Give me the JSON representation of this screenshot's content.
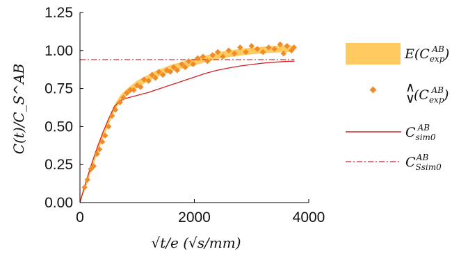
{
  "chart_data": {
    "type": "line",
    "xlabel": "√t/e (√s/mm)",
    "ylabel": "C(t)/C_S^AB",
    "xlim": [
      0,
      4000
    ],
    "ylim": [
      0,
      1.25
    ],
    "x_ticks": [
      "0",
      "2000",
      "4000"
    ],
    "y_ticks": [
      "0.00",
      "0.25",
      "0.50",
      "0.75",
      "1.00",
      "1.25"
    ],
    "grid": false,
    "legend_position": "right",
    "series": [
      {
        "name": "E(C_exp^AB)",
        "kind": "band",
        "color": "#FFCA5F",
        "x": [
          0,
          100,
          200,
          300,
          400,
          500,
          600,
          700,
          800,
          900,
          1000,
          1100,
          1200,
          1300,
          1400,
          1500,
          1600,
          1700,
          1800,
          1900,
          2000,
          2100,
          2200,
          2300,
          2400,
          2500,
          2600,
          2700,
          2800,
          2900,
          3000,
          3100,
          3200,
          3300,
          3400,
          3500,
          3600,
          3700
        ],
        "y": [
          0.0,
          0.12,
          0.23,
          0.34,
          0.44,
          0.53,
          0.62,
          0.68,
          0.72,
          0.75,
          0.78,
          0.8,
          0.82,
          0.84,
          0.855,
          0.87,
          0.885,
          0.895,
          0.905,
          0.915,
          0.925,
          0.935,
          0.945,
          0.955,
          0.965,
          0.972,
          0.978,
          0.983,
          0.988,
          0.993,
          0.997,
          1.0,
          1.003,
          1.006,
          1.008,
          1.01,
          1.012,
          1.013
        ],
        "half_width": 0.022
      },
      {
        "name": "(C_exp^AB) bounds",
        "kind": "scatter",
        "color": "#F08C28",
        "x": [
          80,
          130,
          190,
          240,
          300,
          340,
          390,
          440,
          500,
          560,
          620,
          700,
          760,
          820,
          880,
          940,
          1000,
          1060,
          1120,
          1200,
          1260,
          1320,
          1380,
          1450,
          1520,
          1580,
          1640,
          1700,
          1780,
          1840,
          1900,
          1980,
          2060,
          2150,
          2230,
          2320,
          2410,
          2500,
          2600,
          2700,
          2800,
          2900,
          3000,
          3100,
          3200,
          3300,
          3400,
          3500,
          3560,
          3620,
          3700,
          3740
        ],
        "y": [
          0.1,
          0.15,
          0.22,
          0.24,
          0.32,
          0.35,
          0.4,
          0.44,
          0.5,
          0.57,
          0.61,
          0.66,
          0.69,
          0.72,
          0.74,
          0.74,
          0.77,
          0.76,
          0.81,
          0.8,
          0.84,
          0.82,
          0.86,
          0.84,
          0.87,
          0.86,
          0.89,
          0.87,
          0.91,
          0.89,
          0.93,
          0.91,
          0.95,
          0.96,
          0.93,
          0.97,
          0.99,
          0.96,
          1.0,
          0.98,
          1.02,
          0.99,
          1.03,
          1.01,
          0.99,
          1.02,
          1.01,
          1.04,
          0.98,
          1.03,
          1.0,
          1.02
        ]
      },
      {
        "name": "C_sim0^AB",
        "kind": "line",
        "color": "#D42020",
        "x": [
          0,
          100,
          200,
          300,
          400,
          500,
          600,
          700,
          800,
          900,
          1000,
          1200,
          1400,
          1600,
          1800,
          2000,
          2200,
          2400,
          2600,
          2800,
          3000,
          3200,
          3400,
          3600,
          3750
        ],
        "y": [
          0.0,
          0.13,
          0.25,
          0.36,
          0.46,
          0.55,
          0.63,
          0.67,
          0.685,
          0.695,
          0.705,
          0.725,
          0.75,
          0.775,
          0.8,
          0.825,
          0.85,
          0.87,
          0.885,
          0.898,
          0.908,
          0.917,
          0.923,
          0.928,
          0.93
        ]
      },
      {
        "name": "C_Ssim0^AB",
        "kind": "dashdot",
        "color": "#D42020",
        "x": [
          0,
          3750
        ],
        "y": [
          0.94,
          0.94
        ]
      }
    ]
  },
  "legend": {
    "band_label": "E(C",
    "band_sub": "exp",
    "band_sup": "AB",
    "marker_label": "(C",
    "marker_sub": "exp",
    "marker_sup": "AB",
    "line_label": "C",
    "line_sub": "sim0",
    "line_sup": "AB",
    "dash_label": "C",
    "dash_sub": "Ssim0",
    "dash_sup": "AB"
  },
  "colors": {
    "band": "#FFCA5F",
    "marker": "#F08C28",
    "sim": "#D42020",
    "axis": "#000000"
  }
}
